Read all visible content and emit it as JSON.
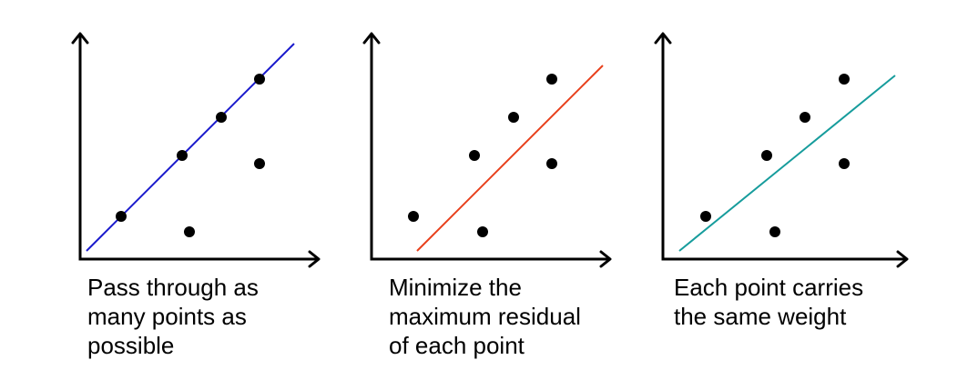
{
  "panels": [
    {
      "caption": [
        "Pass through as",
        "many points as",
        "possible"
      ]
    },
    {
      "caption": [
        "Minimize the",
        "maximum residual",
        "of each point"
      ]
    },
    {
      "caption": [
        "Each point carries",
        "the same weight"
      ]
    }
  ]
}
